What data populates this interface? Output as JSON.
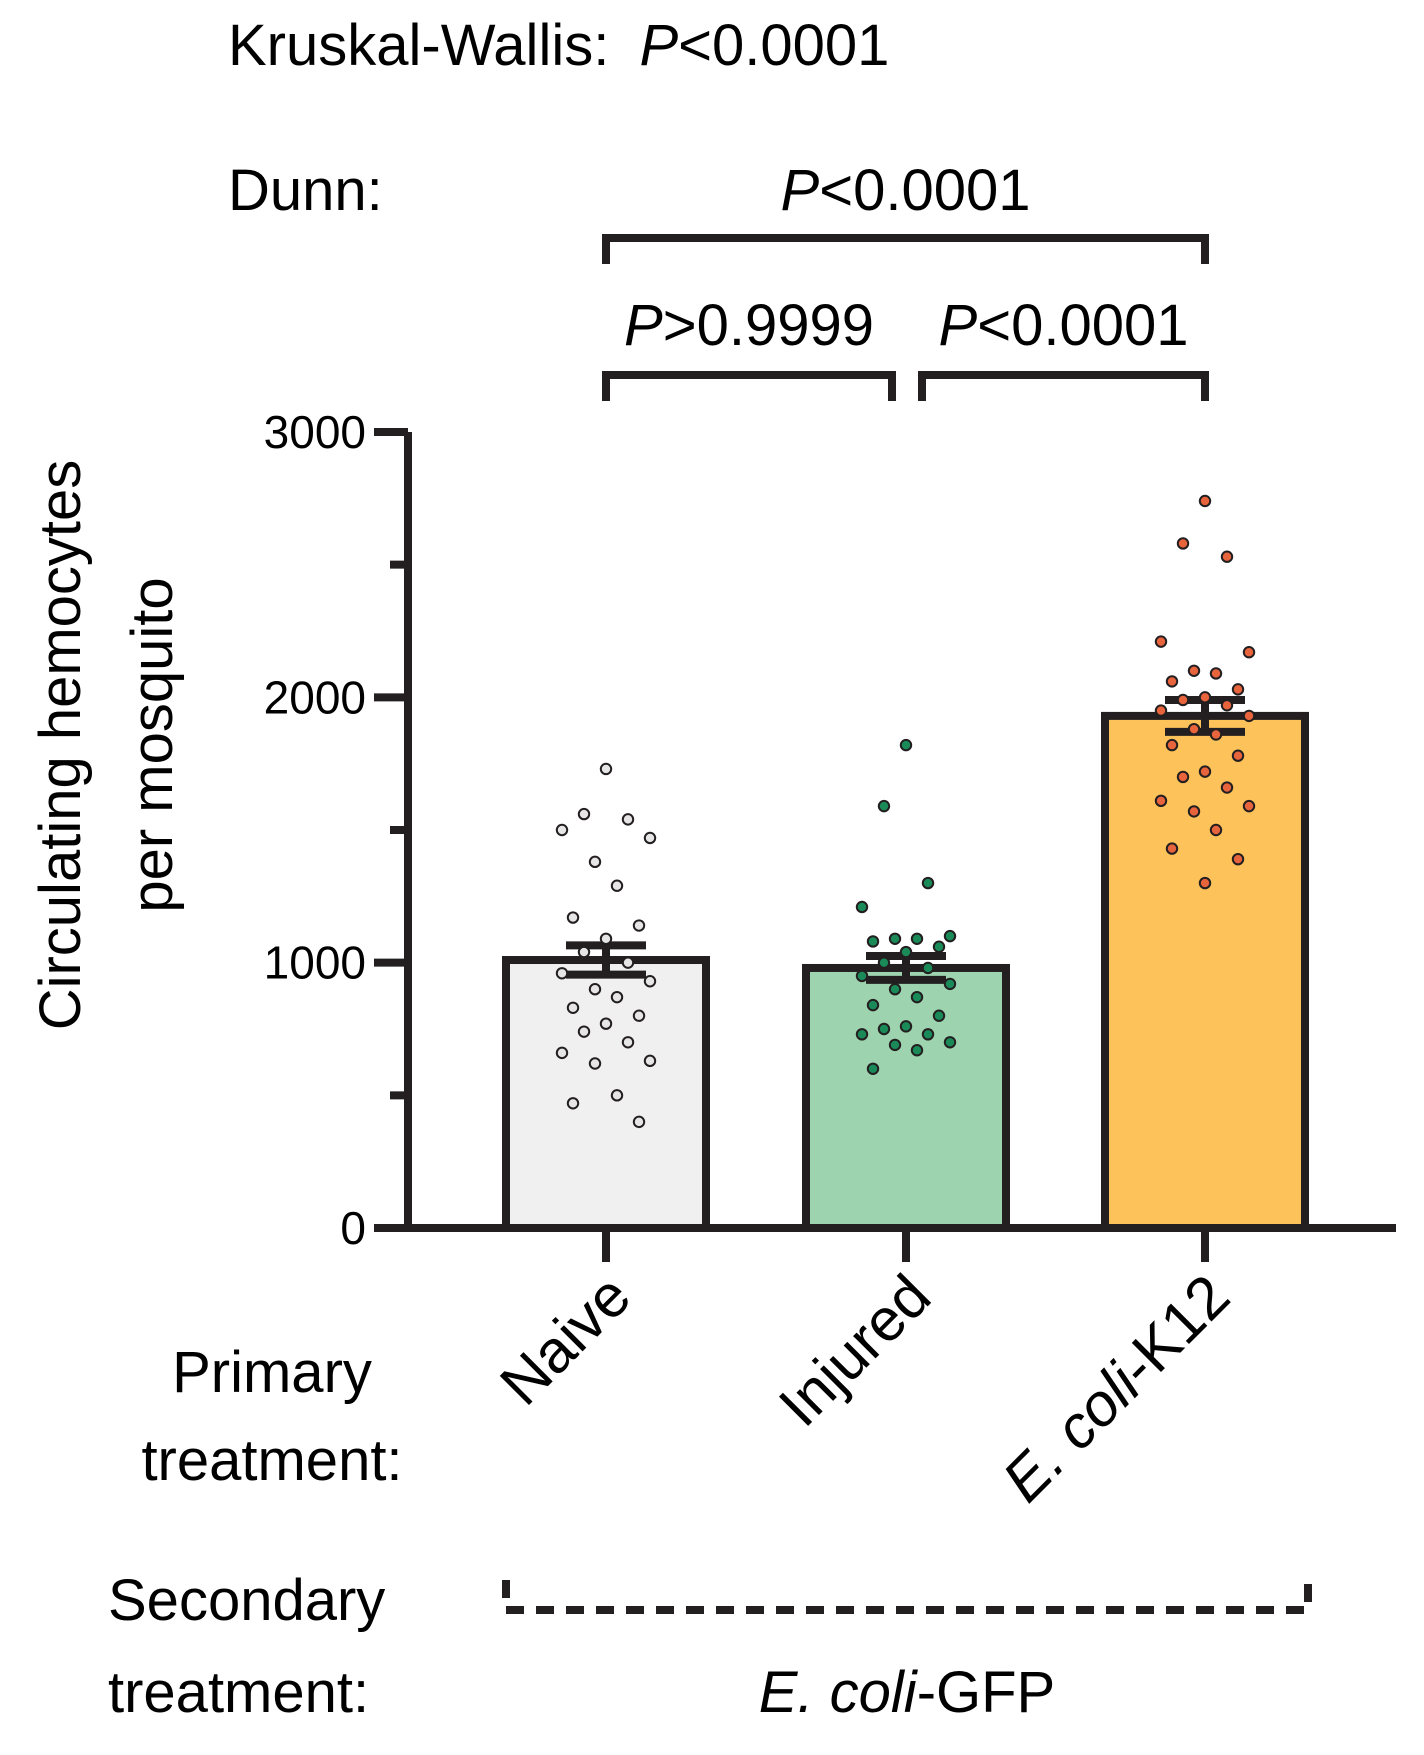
{
  "chart_data": {
    "type": "bar",
    "title_kruskal_label": "Kruskal-Wallis:",
    "title_kruskal_p": "P",
    "title_kruskal_value": "<0.0001",
    "dunn_label": "Dunn:",
    "ylabel_line1": "Circulating hemocytes",
    "ylabel_line2": "per mosquito",
    "ylim": [
      0,
      3000
    ],
    "yticks": [
      0,
      1000,
      2000,
      3000
    ],
    "ytick_labels": [
      "0",
      "1000",
      "2000",
      "3000"
    ],
    "minor_yticks": [
      500,
      1500,
      2500
    ],
    "categories": [
      {
        "label_plain": "Naive",
        "label_italic": "",
        "label_suffix": ""
      },
      {
        "label_plain": "Injured",
        "label_italic": "",
        "label_suffix": ""
      },
      {
        "label_plain": "",
        "label_italic": "E. coli",
        "label_suffix": "-K12"
      }
    ],
    "means": [
      1010,
      980,
      1930
    ],
    "sem": [
      55,
      45,
      60
    ],
    "colors": [
      "#f0f0f0",
      "#9dd3ae",
      "#fdc25a"
    ],
    "dot_colors": [
      "#e6e6e6",
      "#1a8a58",
      "#e8643c"
    ],
    "points": [
      [
        1730,
        1560,
        1540,
        1500,
        1470,
        1380,
        1290,
        1170,
        1140,
        1090,
        1040,
        1000,
        960,
        930,
        900,
        870,
        830,
        800,
        770,
        740,
        700,
        660,
        630,
        620,
        500,
        470,
        400
      ],
      [
        1820,
        1590,
        1300,
        1210,
        1100,
        1090,
        1090,
        1080,
        1060,
        1040,
        1000,
        980,
        950,
        920,
        900,
        870,
        840,
        800,
        760,
        750,
        730,
        730,
        700,
        690,
        670,
        600
      ],
      [
        2740,
        2580,
        2530,
        2210,
        2170,
        2100,
        2090,
        2060,
        2030,
        2000,
        1990,
        1970,
        1950,
        1930,
        1880,
        1860,
        1820,
        1780,
        1720,
        1700,
        1660,
        1610,
        1590,
        1570,
        1500,
        1430,
        1390,
        1300
      ]
    ],
    "comparisons": [
      {
        "p_letter": "P",
        "p_value": "<0.0001",
        "from": 0,
        "to": 2
      },
      {
        "p_letter": "P",
        "p_value": ">0.9999",
        "from": 0,
        "to": 1
      },
      {
        "p_letter": "P",
        "p_value": "<0.0001",
        "from": 1,
        "to": 2
      }
    ],
    "primary_label_line1": "Primary",
    "primary_label_line2": "treatment:",
    "secondary_label_line1": "Secondary",
    "secondary_label_line2": "treatment:",
    "secondary_value_italic": "E. coli",
    "secondary_value_suffix": "-GFP"
  }
}
